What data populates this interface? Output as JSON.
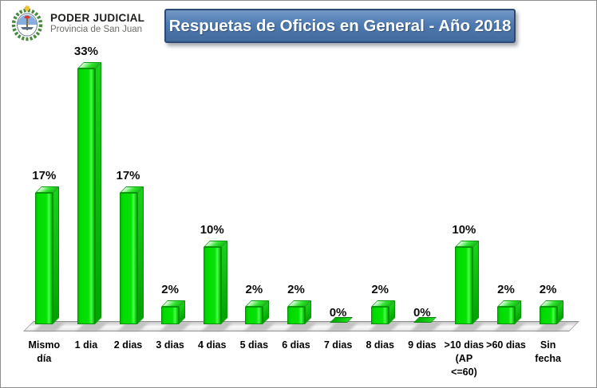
{
  "header": {
    "org_name": "PODER JUDICIAL",
    "org_subtitle": "Provincia de San Juan",
    "title": "Respuetas de Oficios en General - Año 2018"
  },
  "icons": {
    "logo": "coat-of-arms-san-juan"
  },
  "colors": {
    "banner_fill": "#4e7bb2",
    "banner_border": "#2c4a73",
    "banner_text": "#ffffff",
    "bar_front": "#00dc00",
    "bar_side": "#00a300",
    "bar_top": "#36e636",
    "label_color": "#0d0d0d",
    "floor_fill": "#e6e6e6",
    "frame_border": "#8e8e8e"
  },
  "chart_data": {
    "type": "bar",
    "style": "3d-column",
    "title": "Respuetas de Oficios en General - Año 2018",
    "categories": [
      "Mismo día",
      "1 dia",
      "2 dias",
      "3 dias",
      "4 dias",
      "5 dias",
      "6 dias",
      "7 dias",
      "8 dias",
      "9 dias",
      ">10 dias (AP <=60)",
      ">60 dias",
      "Sin fecha"
    ],
    "category_labels_multiline": [
      "Mismo\ndía",
      "1 dia",
      "2 dias",
      "3 dias",
      "4 dias",
      "5 dias",
      "6 dias",
      "7 dias",
      "8 dias",
      "9 dias",
      ">10 dias\n(AP\n<=60)",
      ">60 dias",
      "Sin\nfecha"
    ],
    "values": [
      17,
      33,
      17,
      2,
      10,
      2,
      2,
      0,
      2,
      0,
      10,
      2,
      2
    ],
    "value_labels": [
      "17%",
      "33%",
      "17%",
      "2%",
      "10%",
      "2%",
      "2%",
      "0%",
      "2%",
      "0%",
      "10%",
      "2%",
      "2%"
    ],
    "unit": "%",
    "xlabel": "",
    "ylabel": "",
    "ylim": [
      0,
      35
    ],
    "grid": false,
    "legend": "none",
    "data_labels": "above-bars"
  }
}
